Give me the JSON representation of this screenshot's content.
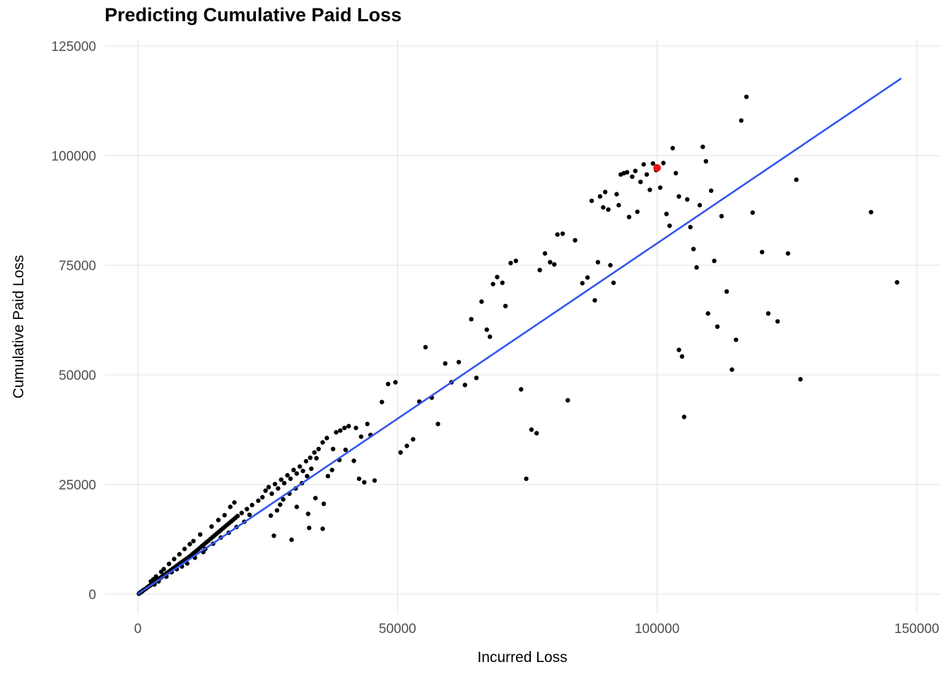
{
  "chart_data": {
    "type": "scatter",
    "title": "Predicting Cumulative Paid Loss",
    "xlabel": "Incurred Loss",
    "ylabel": "Cumulative Paid Loss",
    "x_ticks": [
      0,
      50000,
      100000,
      150000
    ],
    "y_ticks": [
      0,
      25000,
      50000,
      75000,
      100000,
      125000
    ],
    "xlim": [
      -6500,
      154500
    ],
    "ylim": [
      -4500,
      126500
    ],
    "grid": true,
    "legend": "none",
    "colors": {
      "point": "#000000",
      "highlight": "#EE1111",
      "line": "#3355EE",
      "gridline": "#E6E6E6",
      "tick_label": "#4D4D4D"
    },
    "line": {
      "x": [
        0,
        147000
      ],
      "y": [
        0,
        117600
      ]
    },
    "highlight_point": {
      "x": 100000,
      "y": 97200
    },
    "points": [
      [
        200,
        100
      ],
      [
        300,
        200
      ],
      [
        400,
        300
      ],
      [
        500,
        400
      ],
      [
        600,
        450
      ],
      [
        700,
        550
      ],
      [
        800,
        600
      ],
      [
        900,
        700
      ],
      [
        1000,
        800
      ],
      [
        1100,
        900
      ],
      [
        1200,
        1000
      ],
      [
        1400,
        1150
      ],
      [
        1600,
        1300
      ],
      [
        1800,
        1500
      ],
      [
        2000,
        1700
      ],
      [
        2200,
        1850
      ],
      [
        2400,
        2000
      ],
      [
        2600,
        2200
      ],
      [
        2800,
        2350
      ],
      [
        3000,
        2550
      ],
      [
        3200,
        2700
      ],
      [
        3400,
        2900
      ],
      [
        3600,
        3050
      ],
      [
        3800,
        3250
      ],
      [
        4000,
        3400
      ],
      [
        4200,
        3600
      ],
      [
        4400,
        3750
      ],
      [
        4600,
        3950
      ],
      [
        4800,
        4100
      ],
      [
        5000,
        4300
      ],
      [
        5200,
        4450
      ],
      [
        5400,
        4600
      ],
      [
        5600,
        4800
      ],
      [
        5800,
        4950
      ],
      [
        6000,
        5150
      ],
      [
        6200,
        5300
      ],
      [
        6400,
        5500
      ],
      [
        6600,
        5650
      ],
      [
        6800,
        5850
      ],
      [
        7000,
        6000
      ],
      [
        7200,
        6200
      ],
      [
        7400,
        6350
      ],
      [
        7600,
        6550
      ],
      [
        7800,
        6700
      ],
      [
        8000,
        6900
      ],
      [
        8300,
        7150
      ],
      [
        8600,
        7400
      ],
      [
        8900,
        7650
      ],
      [
        9200,
        7900
      ],
      [
        9500,
        8150
      ],
      [
        9800,
        8400
      ],
      [
        3000,
        3400
      ],
      [
        4500,
        5100
      ],
      [
        5000,
        5700
      ],
      [
        6000,
        6900
      ],
      [
        7000,
        8000
      ],
      [
        8000,
        9100
      ],
      [
        9000,
        10300
      ],
      [
        2500,
        2900
      ],
      [
        3500,
        4000
      ],
      [
        5500,
        4000
      ],
      [
        6500,
        5000
      ],
      [
        7500,
        5700
      ],
      [
        8500,
        6300
      ],
      [
        9500,
        7000
      ],
      [
        4000,
        2900
      ],
      [
        3200,
        2200
      ],
      [
        10000,
        8600
      ],
      [
        10000,
        11400
      ],
      [
        10400,
        9000
      ],
      [
        10800,
        9400
      ],
      [
        11200,
        9800
      ],
      [
        11600,
        10200
      ],
      [
        12000,
        10600
      ],
      [
        12000,
        13600
      ],
      [
        12400,
        11000
      ],
      [
        12800,
        11400
      ],
      [
        13200,
        11800
      ],
      [
        13600,
        12200
      ],
      [
        14000,
        12600
      ],
      [
        14400,
        13000
      ],
      [
        14800,
        13400
      ],
      [
        15200,
        13800
      ],
      [
        15600,
        14200
      ],
      [
        16000,
        14600
      ],
      [
        16400,
        15000
      ],
      [
        16800,
        15400
      ],
      [
        17200,
        15800
      ],
      [
        17600,
        16200
      ],
      [
        18000,
        16600
      ],
      [
        18400,
        17000
      ],
      [
        18800,
        17400
      ],
      [
        19200,
        17800
      ],
      [
        20000,
        18500
      ],
      [
        21000,
        19400
      ],
      [
        22000,
        20300
      ],
      [
        13000,
        10300
      ],
      [
        14500,
        11500
      ],
      [
        16000,
        12900
      ],
      [
        17500,
        14000
      ],
      [
        19000,
        15300
      ],
      [
        20500,
        16500
      ],
      [
        15500,
        16900
      ],
      [
        16700,
        18000
      ],
      [
        14200,
        15400
      ],
      [
        18600,
        20900
      ],
      [
        17800,
        19900
      ],
      [
        11000,
        8300
      ],
      [
        12600,
        9600
      ],
      [
        21500,
        18100
      ],
      [
        10700,
        12100
      ],
      [
        23200,
        21300
      ],
      [
        24000,
        22100
      ],
      [
        24600,
        23600
      ],
      [
        25200,
        24400
      ],
      [
        25800,
        22900
      ],
      [
        26400,
        25100
      ],
      [
        27000,
        24100
      ],
      [
        27600,
        26100
      ],
      [
        28200,
        25300
      ],
      [
        28800,
        27100
      ],
      [
        29400,
        26300
      ],
      [
        30000,
        28300
      ],
      [
        30600,
        27500
      ],
      [
        31200,
        29100
      ],
      [
        31800,
        28100
      ],
      [
        32400,
        30300
      ],
      [
        33200,
        31100
      ],
      [
        34000,
        32300
      ],
      [
        34800,
        33100
      ],
      [
        35600,
        34600
      ],
      [
        36400,
        35600
      ],
      [
        34400,
        31000
      ],
      [
        33400,
        28600
      ],
      [
        32600,
        26900
      ],
      [
        31600,
        25300
      ],
      [
        30400,
        24100
      ],
      [
        29200,
        22900
      ],
      [
        28000,
        21600
      ],
      [
        26800,
        19100
      ],
      [
        25600,
        17900
      ],
      [
        26200,
        13300
      ],
      [
        29600,
        12400
      ],
      [
        33000,
        15100
      ],
      [
        35600,
        14900
      ],
      [
        30600,
        19900
      ],
      [
        32800,
        18300
      ],
      [
        34200,
        21900
      ],
      [
        35800,
        20600
      ],
      [
        36600,
        26900
      ],
      [
        37400,
        28300
      ],
      [
        38200,
        36900
      ],
      [
        39000,
        37300
      ],
      [
        39800,
        37900
      ],
      [
        40600,
        38300
      ],
      [
        41600,
        30400
      ],
      [
        42600,
        26300
      ],
      [
        43600,
        25500
      ],
      [
        44200,
        38800
      ],
      [
        44800,
        36300
      ],
      [
        45600,
        25900
      ],
      [
        43000,
        35900
      ],
      [
        42000,
        37900
      ],
      [
        40000,
        32900
      ],
      [
        38800,
        30600
      ],
      [
        37600,
        33100
      ],
      [
        27400,
        20400
      ],
      [
        47000,
        43800
      ],
      [
        48200,
        47900
      ],
      [
        49600,
        48300
      ],
      [
        50600,
        32300
      ],
      [
        51800,
        33800
      ],
      [
        53000,
        35300
      ],
      [
        54200,
        43900
      ],
      [
        55400,
        56300
      ],
      [
        56600,
        44800
      ],
      [
        57800,
        38800
      ],
      [
        59200,
        52600
      ],
      [
        60400,
        48300
      ],
      [
        61800,
        52900
      ],
      [
        63000,
        47700
      ],
      [
        64200,
        62700
      ],
      [
        65200,
        49300
      ],
      [
        66200,
        66700
      ],
      [
        67200,
        60300
      ],
      [
        67800,
        58700
      ],
      [
        68400,
        70700
      ],
      [
        69200,
        72300
      ],
      [
        70200,
        71000
      ],
      [
        70800,
        65700
      ],
      [
        71800,
        75500
      ],
      [
        72800,
        76000
      ],
      [
        73800,
        46700
      ],
      [
        74800,
        26300
      ],
      [
        75800,
        37500
      ],
      [
        76800,
        36700
      ],
      [
        77400,
        73900
      ],
      [
        78400,
        77700
      ],
      [
        79400,
        75700
      ],
      [
        80200,
        75200
      ],
      [
        80800,
        82000
      ],
      [
        81800,
        82200
      ],
      [
        82800,
        44200
      ],
      [
        84200,
        80700
      ],
      [
        85600,
        70900
      ],
      [
        86600,
        72200
      ],
      [
        87400,
        89700
      ],
      [
        88000,
        67000
      ],
      [
        88600,
        75700
      ],
      [
        89000,
        90700
      ],
      [
        89600,
        88200
      ],
      [
        90000,
        91700
      ],
      [
        90600,
        87700
      ],
      [
        91000,
        75000
      ],
      [
        91600,
        71000
      ],
      [
        92200,
        91200
      ],
      [
        92600,
        88700
      ],
      [
        93000,
        95700
      ],
      [
        93600,
        96000
      ],
      [
        94200,
        96200
      ],
      [
        94600,
        86000
      ],
      [
        95200,
        95200
      ],
      [
        95800,
        96500
      ],
      [
        96200,
        87200
      ],
      [
        96800,
        94000
      ],
      [
        97400,
        98000
      ],
      [
        98000,
        95700
      ],
      [
        98600,
        92200
      ],
      [
        99200,
        98200
      ],
      [
        99800,
        96700
      ],
      [
        100600,
        92700
      ],
      [
        101200,
        98300
      ],
      [
        101800,
        86700
      ],
      [
        102400,
        84000
      ],
      [
        103000,
        101700
      ],
      [
        103600,
        96000
      ],
      [
        104200,
        90700
      ],
      [
        104200,
        55700
      ],
      [
        104800,
        54200
      ],
      [
        105200,
        40400
      ],
      [
        105800,
        90000
      ],
      [
        106400,
        83700
      ],
      [
        107000,
        78700
      ],
      [
        107600,
        74500
      ],
      [
        108200,
        88700
      ],
      [
        108800,
        102000
      ],
      [
        109400,
        98700
      ],
      [
        109800,
        64000
      ],
      [
        110400,
        92000
      ],
      [
        111000,
        76000
      ],
      [
        111600,
        61000
      ],
      [
        112400,
        86200
      ],
      [
        113400,
        69000
      ],
      [
        114400,
        51200
      ],
      [
        115200,
        58000
      ],
      [
        116200,
        108000
      ],
      [
        117200,
        113400
      ],
      [
        118400,
        87000
      ],
      [
        120200,
        78000
      ],
      [
        121400,
        64000
      ],
      [
        123200,
        62200
      ],
      [
        125200,
        77700
      ],
      [
        126800,
        94500
      ],
      [
        127600,
        49000
      ],
      [
        141200,
        87100
      ],
      [
        146200,
        71100
      ]
    ]
  }
}
